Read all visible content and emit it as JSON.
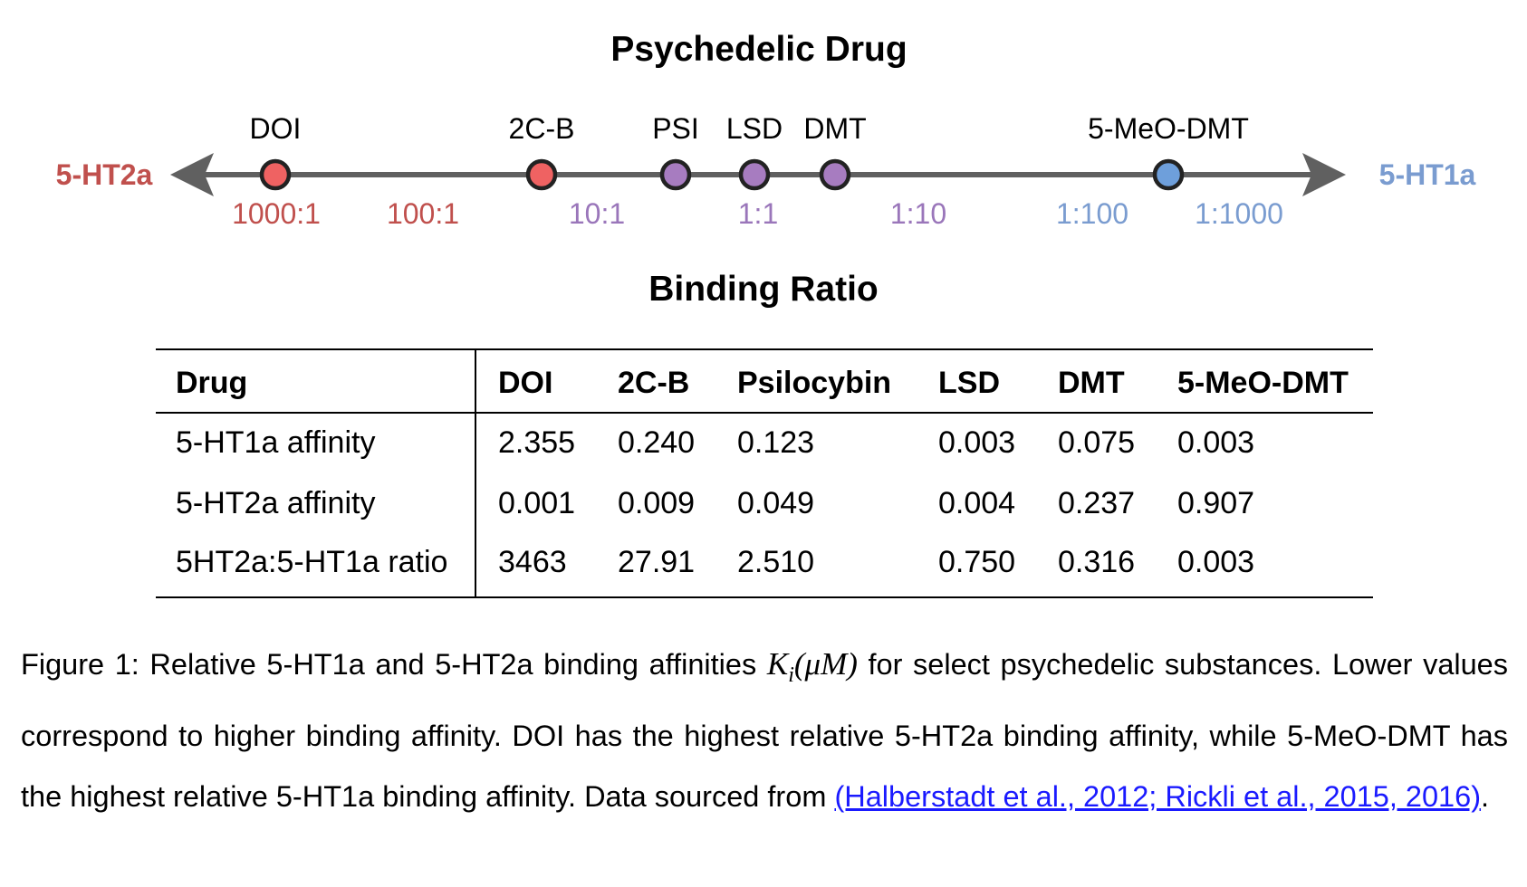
{
  "diagram": {
    "title": "Psychedelic Drug",
    "left_end_label": "5-HT2a",
    "right_end_label": "5-HT1a",
    "colors": {
      "red": "#ef6262",
      "purple": "#a77cc0",
      "blue": "#6e9fdb",
      "axis": "#606060",
      "red_text": "#c0504d",
      "purple_text": "#9a76ba",
      "blue_text": "#7a9cd0"
    },
    "drugs": [
      {
        "label": "DOI",
        "color": "red"
      },
      {
        "label": "2C-B",
        "color": "red"
      },
      {
        "label": "PSI",
        "color": "purple"
      },
      {
        "label": "LSD",
        "color": "purple"
      },
      {
        "label": "DMT",
        "color": "purple"
      },
      {
        "label": "5-MeO-DMT",
        "color": "blue"
      }
    ],
    "ratios": [
      {
        "label": "1000:1",
        "color": "red"
      },
      {
        "label": "100:1",
        "color": "red"
      },
      {
        "label": "10:1",
        "color": "purple"
      },
      {
        "label": "1:1",
        "color": "purple"
      },
      {
        "label": "1:10",
        "color": "purple"
      },
      {
        "label": "1:100",
        "color": "blue"
      },
      {
        "label": "1:1000",
        "color": "blue"
      }
    ]
  },
  "table": {
    "title": "Binding Ratio",
    "columns": [
      "Drug",
      "DOI",
      "2C-B",
      "Psilocybin",
      "LSD",
      "DMT",
      "5-MeO-DMT"
    ],
    "rows": [
      [
        "5-HT1a affinity",
        "2.355",
        "0.240",
        "0.123",
        "0.003",
        "0.075",
        "0.003"
      ],
      [
        "5-HT2a affinity",
        "0.001",
        "0.009",
        "0.049",
        "0.004",
        "0.237",
        "0.907"
      ],
      [
        "5HT2a:5-HT1a ratio",
        "3463",
        "27.91",
        "2.510",
        "0.750",
        "0.316",
        "0.003"
      ]
    ]
  },
  "caption": {
    "part1": "Figure 1: Relative 5-HT1a and 5-HT2a binding affinities ",
    "math_K": "K",
    "math_i": "i",
    "math_rest": "(μM)",
    "part2": " for select psychedelic substances. Lower values correspond to higher binding affinity.  DOI has the highest relative 5-HT2a binding affinity, while 5-MeO-DMT has the highest relative 5-HT1a binding affinity. Data sourced from ",
    "citation": "(Halberstadt et al., 2012; Rickli et al., 2015, 2016)",
    "end": "."
  }
}
